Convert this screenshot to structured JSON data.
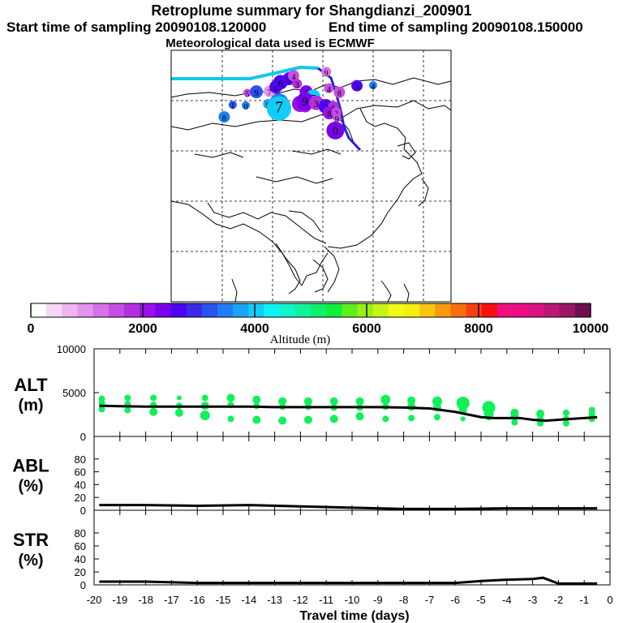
{
  "titles": {
    "main": "Retroplume summary for Shangdianzi_200901",
    "start_time": "Start time of sampling 20090108.120000",
    "end_time": "End time of sampling 20090108.150000",
    "met": "Meteorological data used is ECMWF"
  },
  "colorbar": {
    "label": "Altitude (m)",
    "ticks": [
      "0",
      "2000",
      "4000",
      "6000",
      "8000",
      "10000"
    ],
    "min": 0,
    "max": 10000,
    "colors": [
      "#ffffff",
      "#f7d6f7",
      "#efb5ef",
      "#e394eb",
      "#d673e6",
      "#c64fe3",
      "#b22fe0",
      "#9a10e6",
      "#7a00ec",
      "#5000f2",
      "#3a2ae6",
      "#2a52ef",
      "#207ef4",
      "#1aa6f7",
      "#10cef9",
      "#10f3f5",
      "#10f5c9",
      "#10f39c",
      "#10f069",
      "#10ee3c",
      "#5eee18",
      "#98f018",
      "#c6f418",
      "#eefc18",
      "#f7ee10",
      "#f7c610",
      "#f79a10",
      "#f76f10",
      "#f74010",
      "#f71010",
      "#ef1080",
      "#ee0c88",
      "#d81480",
      "#bc1874",
      "#9c1466",
      "#6e1050"
    ]
  },
  "map": {
    "markers": [
      {
        "label": "5",
        "x": -0.5,
        "y": 2.2,
        "alt": 1500,
        "size": 5
      },
      {
        "label": "9",
        "x": 1.3,
        "y": 2.4,
        "alt": 3200,
        "size": 8
      },
      {
        "label": "7",
        "x": 3.9,
        "y": 2.5,
        "alt": 1000,
        "size": 7
      },
      {
        "label": "8",
        "x": 5.2,
        "y": 3.4,
        "alt": 2700,
        "size": 8
      },
      {
        "label": "6",
        "x": 6.1,
        "y": 4.3,
        "alt": 2500,
        "size": 9
      },
      {
        "label": "5",
        "x": 7.8,
        "y": 5.0,
        "alt": 2700,
        "size": 8
      },
      {
        "label": "4",
        "x": 8.7,
        "y": 5.6,
        "alt": 1500,
        "size": 7
      },
      {
        "label": "3",
        "x": 9.4,
        "y": 4.0,
        "alt": 1700,
        "size": 6
      },
      {
        "label": "8",
        "x": 11.2,
        "y": 2.4,
        "alt": 2300,
        "size": 8
      },
      {
        "label": "7",
        "x": 12.6,
        "y": 1.4,
        "alt": 4100,
        "size": 9
      },
      {
        "label": "6",
        "x": 11.0,
        "y": -0.4,
        "alt": 2000,
        "size": 8
      },
      {
        "label": "5",
        "x": 10.0,
        "y": 0.0,
        "alt": 2200,
        "size": 10
      },
      {
        "label": "9",
        "x": 11.0,
        "y": 0.5,
        "alt": 2300,
        "size": 11
      },
      {
        "label": "3",
        "x": 13.2,
        "y": 0.2,
        "alt": 1800,
        "size": 9
      },
      {
        "label": "2",
        "x": 15.1,
        "y": -0.5,
        "alt": 2600,
        "size": 9
      },
      {
        "label": "1",
        "x": 16.6,
        "y": -0.6,
        "alt": 1700,
        "size": 7
      },
      {
        "label": "8",
        "x": 15.8,
        "y": -1.8,
        "alt": 2200,
        "size": 8
      },
      {
        "label": "2",
        "x": 17.2,
        "y": -1.7,
        "alt": 1600,
        "size": 6
      },
      {
        "label": "9",
        "x": 17.3,
        "y": -2.8,
        "alt": 1400,
        "size": 5
      },
      {
        "label": "0",
        "x": 17.0,
        "y": -5.3,
        "alt": 2400,
        "size": 11
      },
      {
        "label": "4",
        "x": 15.7,
        "y": 3.1,
        "alt": 1400,
        "size": 6
      },
      {
        "label": "8",
        "x": 17.8,
        "y": 2.3,
        "alt": 1500,
        "size": 7
      },
      {
        "label": "9",
        "x": 15.2,
        "y": 6.4,
        "alt": 1300,
        "size": 6
      },
      {
        "label": "3",
        "x": 21.3,
        "y": 3.6,
        "alt": 2600,
        "size": 7
      },
      {
        "label": "4",
        "x": 24.5,
        "y": 3.7,
        "alt": 3600,
        "size": 5
      },
      {
        "label": "1",
        "x": -3.4,
        "y": -0.2,
        "alt": 3300,
        "size": 5
      },
      {
        "label": "0",
        "x": -0.8,
        "y": -0.3,
        "alt": 3500,
        "size": 5
      },
      {
        "label": "9",
        "x": 3.6,
        "y": 0.0,
        "alt": 3700,
        "size": 6
      },
      {
        "label": "6",
        "x": 5.8,
        "y": 0.1,
        "alt": 3500,
        "size": 12
      },
      {
        "label": "7",
        "x": 5.8,
        "y": -0.9,
        "alt": 4000,
        "size": 15
      },
      {
        "label": "8",
        "x": -5.1,
        "y": -2.6,
        "alt": 3600,
        "size": 7
      }
    ]
  },
  "chart_data": [
    {
      "type": "line",
      "panel": "ALT",
      "ylabel_line1": "ALT",
      "ylabel_line2": "(m)",
      "ylim": [
        0,
        10000
      ],
      "yticks": [
        "10000",
        "5000",
        "0"
      ],
      "x": [
        -19.8,
        -19,
        -18,
        -17,
        -16,
        -15,
        -14,
        -13,
        -12,
        -11,
        -10,
        -9,
        -8,
        -7,
        -6.5,
        -6,
        -5.5,
        -5,
        -4.5,
        -4,
        -3.5,
        -3,
        -2.5,
        -2,
        -1.5,
        -1,
        -0.5
      ],
      "y": [
        3500,
        3450,
        3400,
        3400,
        3400,
        3400,
        3400,
        3350,
        3350,
        3350,
        3350,
        3350,
        3300,
        3200,
        3000,
        2800,
        2500,
        2200,
        2100,
        2100,
        2100,
        1900,
        1800,
        1900,
        2000,
        2100,
        2200
      ],
      "points": [
        {
          "x": -19.7,
          "y": 4300,
          "s": 4
        },
        {
          "x": -19.7,
          "y": 3800,
          "s": 4
        },
        {
          "x": -19.7,
          "y": 3100,
          "s": 4
        },
        {
          "x": -18.7,
          "y": 4400,
          "s": 4
        },
        {
          "x": -18.7,
          "y": 3700,
          "s": 4
        },
        {
          "x": -18.7,
          "y": 3000,
          "s": 4
        },
        {
          "x": -17.7,
          "y": 4400,
          "s": 4
        },
        {
          "x": -17.7,
          "y": 3600,
          "s": 4
        },
        {
          "x": -17.7,
          "y": 2800,
          "s": 5
        },
        {
          "x": -16.7,
          "y": 4400,
          "s": 3
        },
        {
          "x": -16.7,
          "y": 3500,
          "s": 4
        },
        {
          "x": -16.7,
          "y": 2700,
          "s": 5
        },
        {
          "x": -15.7,
          "y": 4400,
          "s": 4
        },
        {
          "x": -15.7,
          "y": 3500,
          "s": 5
        },
        {
          "x": -15.7,
          "y": 2400,
          "s": 6
        },
        {
          "x": -14.7,
          "y": 4400,
          "s": 5
        },
        {
          "x": -14.7,
          "y": 3600,
          "s": 4
        },
        {
          "x": -14.7,
          "y": 2000,
          "s": 4
        },
        {
          "x": -13.7,
          "y": 4200,
          "s": 5
        },
        {
          "x": -13.7,
          "y": 3500,
          "s": 4
        },
        {
          "x": -13.7,
          "y": 1900,
          "s": 5
        },
        {
          "x": -12.7,
          "y": 4000,
          "s": 5
        },
        {
          "x": -12.7,
          "y": 3400,
          "s": 4
        },
        {
          "x": -12.7,
          "y": 1800,
          "s": 5
        },
        {
          "x": -11.7,
          "y": 4000,
          "s": 5
        },
        {
          "x": -11.7,
          "y": 3400,
          "s": 4
        },
        {
          "x": -11.7,
          "y": 1900,
          "s": 5
        },
        {
          "x": -10.7,
          "y": 4000,
          "s": 5
        },
        {
          "x": -10.7,
          "y": 3300,
          "s": 4
        },
        {
          "x": -10.7,
          "y": 2000,
          "s": 5
        },
        {
          "x": -9.7,
          "y": 4000,
          "s": 5
        },
        {
          "x": -9.7,
          "y": 3300,
          "s": 4
        },
        {
          "x": -9.7,
          "y": 2300,
          "s": 5
        },
        {
          "x": -8.7,
          "y": 4200,
          "s": 6
        },
        {
          "x": -8.7,
          "y": 3400,
          "s": 4
        },
        {
          "x": -8.7,
          "y": 2000,
          "s": 4
        },
        {
          "x": -7.7,
          "y": 4100,
          "s": 5
        },
        {
          "x": -7.7,
          "y": 3400,
          "s": 5
        },
        {
          "x": -7.7,
          "y": 2100,
          "s": 4
        },
        {
          "x": -6.7,
          "y": 4000,
          "s": 6
        },
        {
          "x": -6.7,
          "y": 3300,
          "s": 5
        },
        {
          "x": -6.7,
          "y": 2200,
          "s": 4
        },
        {
          "x": -5.7,
          "y": 3800,
          "s": 8
        },
        {
          "x": -5.7,
          "y": 3000,
          "s": 5
        },
        {
          "x": -5.7,
          "y": 2000,
          "s": 3
        },
        {
          "x": -4.7,
          "y": 3300,
          "s": 8
        },
        {
          "x": -4.7,
          "y": 2600,
          "s": 6
        },
        {
          "x": -4.7,
          "y": 2200,
          "s": 4
        },
        {
          "x": -3.7,
          "y": 2700,
          "s": 5
        },
        {
          "x": -3.7,
          "y": 2300,
          "s": 5
        },
        {
          "x": -3.7,
          "y": 1600,
          "s": 4
        },
        {
          "x": -2.7,
          "y": 2600,
          "s": 5
        },
        {
          "x": -2.7,
          "y": 2000,
          "s": 4
        },
        {
          "x": -2.7,
          "y": 1500,
          "s": 4
        },
        {
          "x": -1.7,
          "y": 2700,
          "s": 4
        },
        {
          "x": -1.7,
          "y": 2000,
          "s": 4
        },
        {
          "x": -1.7,
          "y": 1500,
          "s": 4
        },
        {
          "x": -0.7,
          "y": 3000,
          "s": 4
        },
        {
          "x": -0.7,
          "y": 2500,
          "s": 4
        },
        {
          "x": -0.7,
          "y": 2000,
          "s": 4
        }
      ]
    },
    {
      "type": "line",
      "panel": "ABL",
      "ylabel_line1": "ABL",
      "ylabel_line2": "(%)",
      "ylim": [
        0,
        100
      ],
      "yticks": [
        "80",
        "60",
        "40",
        "20",
        "0"
      ],
      "x": [
        -19.8,
        -18,
        -16,
        -14,
        -12,
        -10,
        -8,
        -6,
        -4,
        -2,
        -0.5
      ],
      "y": [
        8,
        8,
        7,
        8,
        6,
        4,
        2,
        2,
        3,
        3,
        3
      ]
    },
    {
      "type": "line",
      "panel": "STR",
      "ylabel_line1": "STR",
      "ylabel_line2": "(%)",
      "ylim": [
        0,
        100
      ],
      "yticks": [
        "80",
        "60",
        "40",
        "20",
        "0"
      ],
      "x": [
        -19.8,
        -18,
        -16,
        -14,
        -12,
        -10,
        -8,
        -6,
        -5,
        -4,
        -3,
        -2.6,
        -2,
        -1,
        -0.5
      ],
      "y": [
        5,
        5,
        3,
        3,
        3,
        3,
        3,
        3,
        6,
        8,
        9,
        11,
        2,
        2,
        2
      ]
    }
  ],
  "xaxis": {
    "label": "Travel time (days)",
    "ticks": [
      "-20",
      "-19",
      "-18",
      "-17",
      "-16",
      "-15",
      "-14",
      "-13",
      "-12",
      "-11",
      "-10",
      "-9",
      "-8",
      "-7",
      "-6",
      "-5",
      "-4",
      "-3",
      "-2",
      "-1",
      "0"
    ],
    "min": -20,
    "max": 0
  },
  "style": {
    "trajectory_color_a": "#10c8f0",
    "trajectory_color_b": "#2a20d8",
    "trajectory_color_c": "#7a00ec",
    "point_color": "#10f05a",
    "line_color": "#000000"
  }
}
